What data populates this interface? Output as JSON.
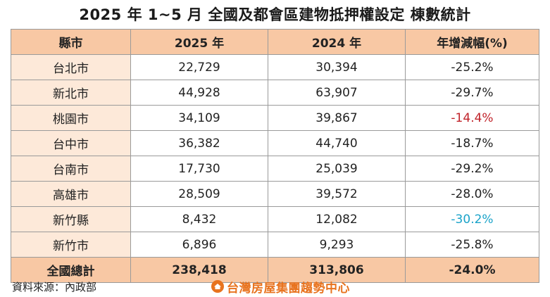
{
  "title": "2025 年 1~5 月 全國及都會區建物抵押權設定 棟數統計",
  "table": {
    "headers": [
      "縣市",
      "2025 年",
      "2024 年",
      "年增減幅(%)"
    ],
    "rows": [
      {
        "city": "台北市",
        "y2025": "22,729",
        "y2024": "30,394",
        "change": "-25.2%",
        "color": "#222222"
      },
      {
        "city": "新北市",
        "y2025": "44,928",
        "y2024": "63,907",
        "change": "-29.7%",
        "color": "#222222"
      },
      {
        "city": "桃園市",
        "y2025": "34,109",
        "y2024": "39,867",
        "change": "-14.4%",
        "color": "#c0232a"
      },
      {
        "city": "台中市",
        "y2025": "36,382",
        "y2024": "44,740",
        "change": "-18.7%",
        "color": "#222222"
      },
      {
        "city": "台南市",
        "y2025": "17,730",
        "y2024": "25,039",
        "change": "-29.2%",
        "color": "#222222"
      },
      {
        "city": "高雄市",
        "y2025": "28,509",
        "y2024": "39,572",
        "change": "-28.0%",
        "color": "#222222"
      },
      {
        "city": "新竹縣",
        "y2025": "8,432",
        "y2024": "12,082",
        "change": "-30.2%",
        "color": "#1aa3c9"
      },
      {
        "city": "新竹市",
        "y2025": "6,896",
        "y2024": "9,293",
        "change": "-25.8%",
        "color": "#222222"
      }
    ],
    "total": {
      "city": "全國總計",
      "y2025": "238,418",
      "y2024": "313,806",
      "change": "-24.0%"
    }
  },
  "source": "資料來源：內政部",
  "logo": {
    "text": "台灣房屋集團趨勢中心",
    "icon": "house-logo-icon",
    "color": "#e8731e"
  },
  "colors": {
    "header_bg": "#f8c8a4",
    "city_bg": "#fde9d9",
    "highlight_red": "#c0232a",
    "highlight_cyan": "#1aa3c9"
  }
}
